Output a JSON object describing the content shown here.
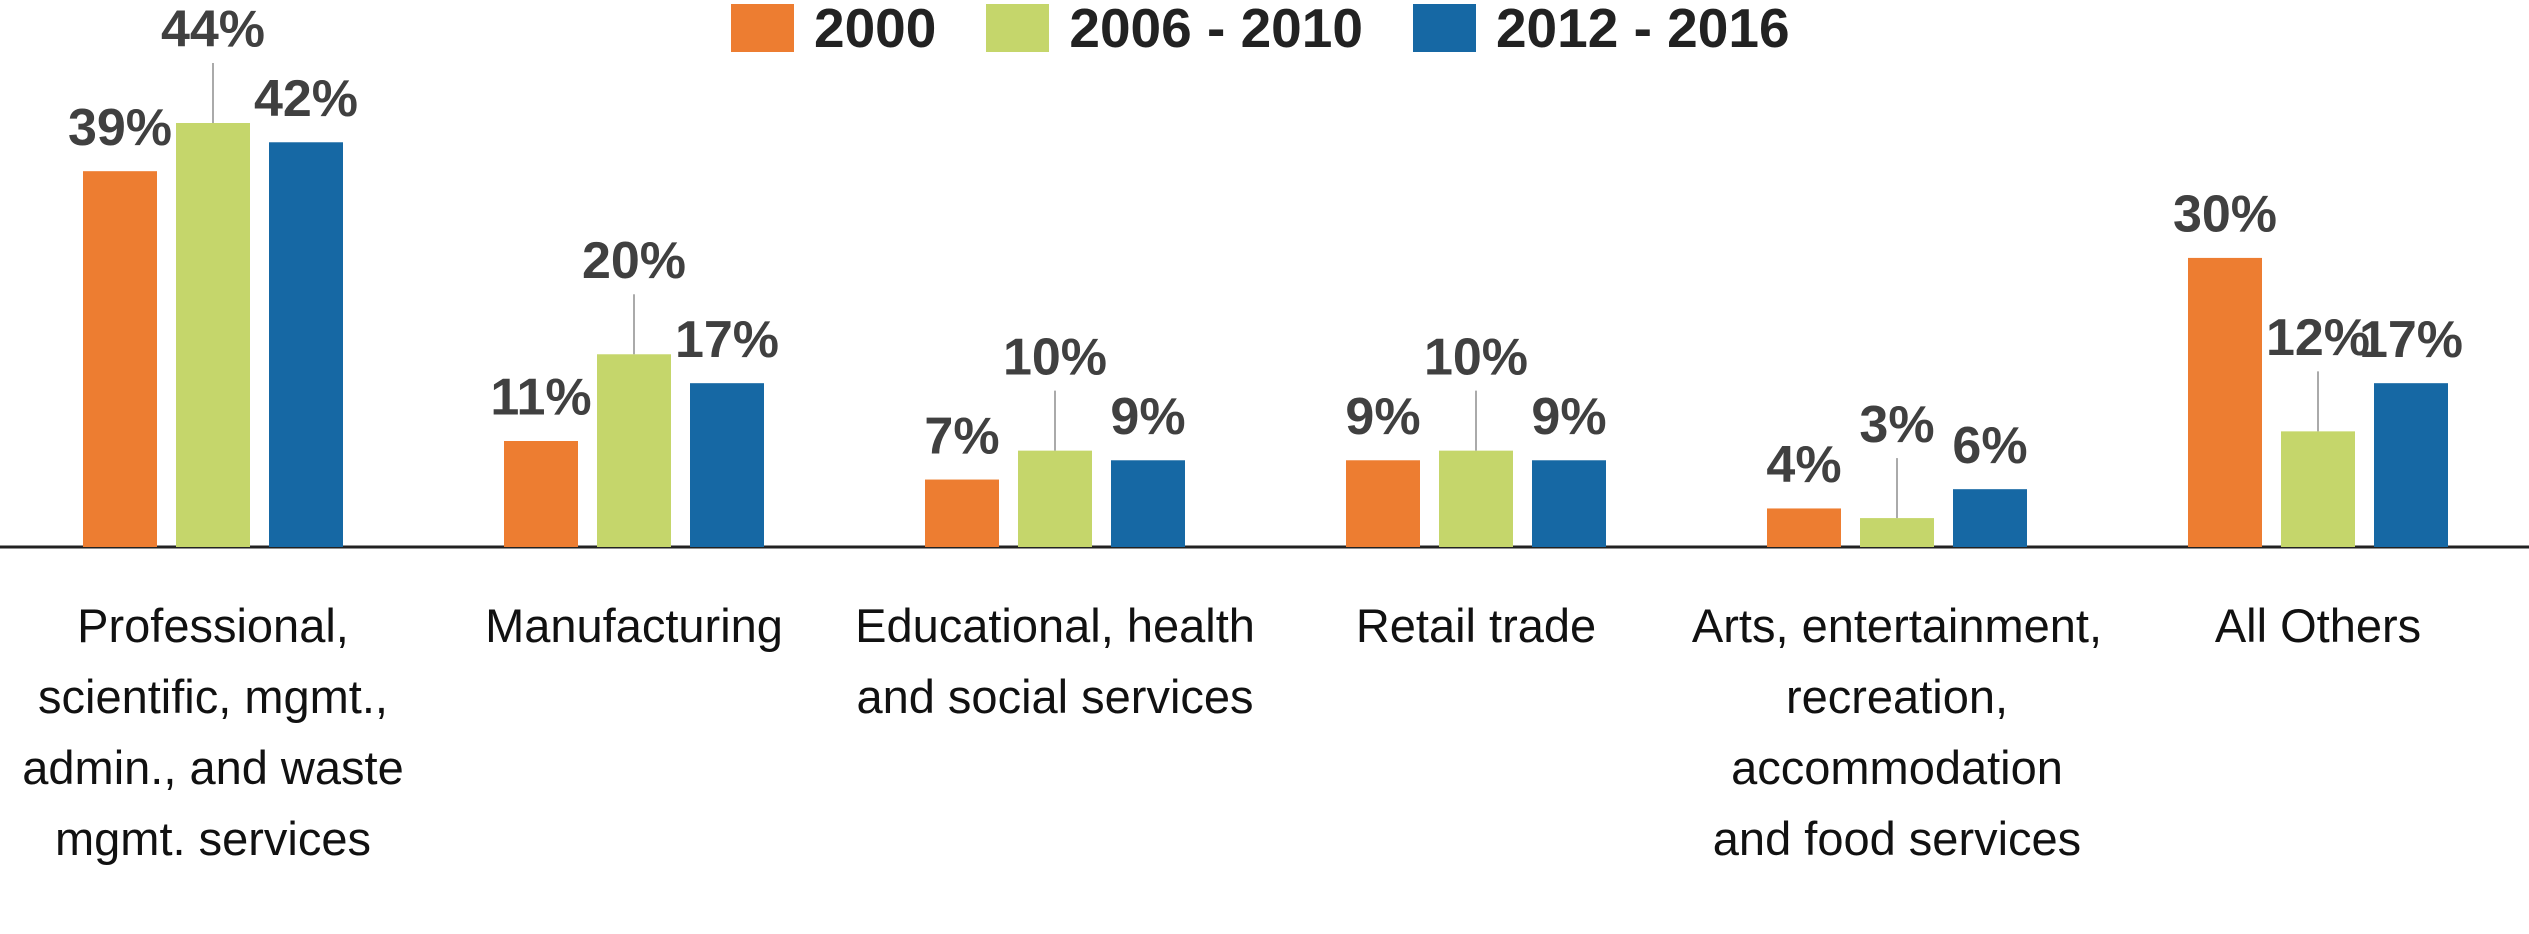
{
  "chart_data": {
    "type": "bar",
    "categories": [
      "Professional, scientific, mgmt., admin., and waste mgmt. services",
      "Manufacturing",
      "Educational, health and social services",
      "Retail trade",
      "Arts, entertainment, recreation, accommodation and food services",
      "All Others"
    ],
    "series": [
      {
        "name": "2000",
        "color": "#ed7d31",
        "values": [
          39,
          11,
          7,
          9,
          4,
          30
        ],
        "value_labels": [
          "39%",
          "11%",
          "7%",
          "9%",
          "4%",
          "30%"
        ]
      },
      {
        "name": "2006 - 2010",
        "color": "#c5d66b",
        "values": [
          44,
          20,
          10,
          10,
          3,
          12
        ],
        "value_labels": [
          "44%",
          "20%",
          "10%",
          "10%",
          "3%",
          "12%"
        ]
      },
      {
        "name": "2012 - 2016",
        "color": "#1668a4",
        "values": [
          42,
          17,
          9,
          9,
          6,
          17
        ],
        "value_labels": [
          "42%",
          "17%",
          "9%",
          "9%",
          "6%",
          "17%"
        ]
      }
    ],
    "legend": "top"
  }
}
